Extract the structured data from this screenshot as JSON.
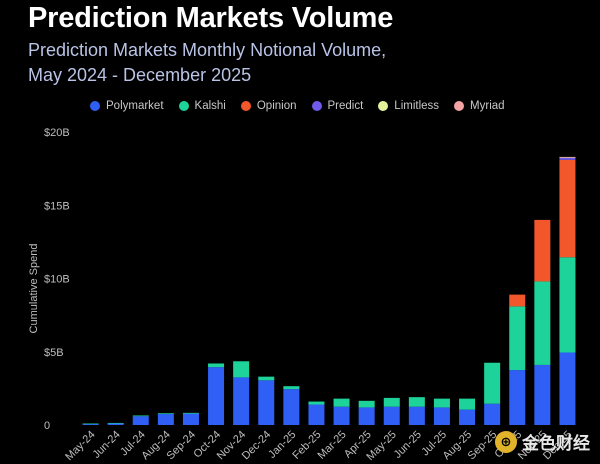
{
  "header": {
    "title": "Prediction Markets Volume",
    "subtitle_line1": "Prediction Markets Monthly Notional Volume,",
    "subtitle_line2": "May 2024 - December 2025"
  },
  "watermark": {
    "text": "金色财经",
    "logo_glyph": "⊕"
  },
  "colors": {
    "Polymarket": "#2f5ff5",
    "Kalshi": "#1ed39a",
    "Opinion": "#f2562b",
    "Predict": "#6f5bea",
    "Limitless": "#e6f29a",
    "Myriad": "#f4a3a3"
  },
  "chart_data": {
    "type": "bar",
    "stacked": true,
    "title": "Prediction Markets Volume",
    "subtitle": "Prediction Markets Monthly Notional Volume, May 2024 - December 2025",
    "xlabel": "",
    "ylabel": "Cumulative Spend",
    "ylim": [
      0,
      20
    ],
    "yticks": [
      0,
      5,
      10,
      15,
      20
    ],
    "ytick_labels": [
      "0",
      "$5B",
      "$10B",
      "$15B",
      "$20B"
    ],
    "legend_position": "top",
    "categories": [
      "May-24",
      "Jun-24",
      "Jul-24",
      "Aug-24",
      "Sep-24",
      "Oct-24",
      "Nov-24",
      "Dec-24",
      "Jan-25",
      "Feb-25",
      "Mar-25",
      "Apr-25",
      "May-25",
      "Jun-25",
      "Jul-25",
      "Aug-25",
      "Sep-25",
      "Oct-25",
      "Nov-25",
      "Dec-25"
    ],
    "series": [
      {
        "name": "Polymarket",
        "values": [
          0.08,
          0.12,
          0.6,
          0.75,
          0.78,
          3.95,
          3.25,
          3.05,
          2.45,
          1.4,
          1.25,
          1.2,
          1.25,
          1.25,
          1.2,
          1.05,
          1.45,
          3.75,
          4.1,
          4.95
        ]
      },
      {
        "name": "Kalshi",
        "values": [
          0.02,
          0.02,
          0.05,
          0.05,
          0.05,
          0.25,
          1.1,
          0.25,
          0.2,
          0.2,
          0.55,
          0.45,
          0.6,
          0.65,
          0.6,
          0.75,
          2.8,
          4.35,
          5.7,
          6.5
        ]
      },
      {
        "name": "Opinion",
        "values": [
          0,
          0,
          0,
          0,
          0,
          0,
          0,
          0,
          0,
          0,
          0,
          0,
          0,
          0,
          0,
          0,
          0,
          0.8,
          4.2,
          6.65
        ]
      },
      {
        "name": "Predict",
        "values": [
          0,
          0,
          0,
          0,
          0,
          0,
          0,
          0,
          0,
          0,
          0,
          0,
          0,
          0,
          0,
          0,
          0,
          0,
          0,
          0.15
        ]
      },
      {
        "name": "Limitless",
        "values": [
          0,
          0,
          0,
          0,
          0,
          0,
          0,
          0,
          0,
          0,
          0,
          0,
          0,
          0,
          0,
          0,
          0,
          0,
          0,
          0.03
        ]
      },
      {
        "name": "Myriad",
        "values": [
          0,
          0,
          0,
          0,
          0,
          0,
          0,
          0,
          0,
          0,
          0,
          0,
          0,
          0,
          0,
          0,
          0,
          0,
          0,
          0.02
        ]
      }
    ]
  }
}
